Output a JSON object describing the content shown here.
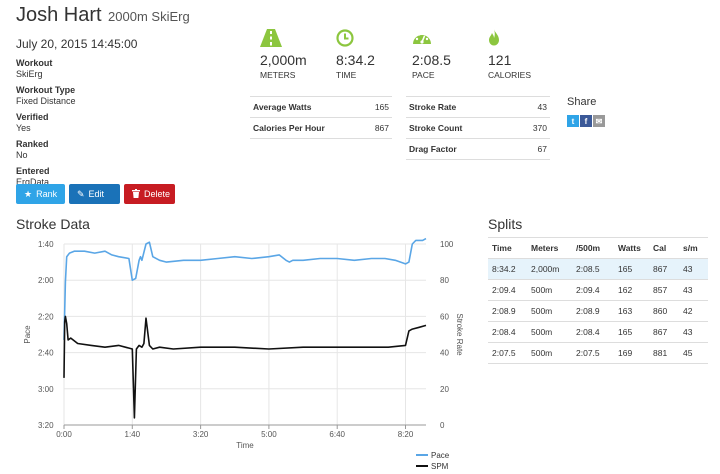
{
  "header": {
    "name": "Josh Hart",
    "subtitle": "2000m SkiErg"
  },
  "date": "July 20, 2015 14:45:00",
  "details": [
    {
      "label": "Workout",
      "value": "SkiErg"
    },
    {
      "label": "Workout Type",
      "value": "Fixed Distance"
    },
    {
      "label": "Verified",
      "value": "Yes"
    },
    {
      "label": "Ranked",
      "value": "No"
    },
    {
      "label": "Entered",
      "value": "ErgData"
    }
  ],
  "buttons": {
    "rank": "Rank",
    "edit": "Edit",
    "delete": "Delete"
  },
  "stats": [
    {
      "icon": "road-icon",
      "value": "2,000m",
      "label": "METERS"
    },
    {
      "icon": "clock-icon",
      "value": "8:34.2",
      "label": "TIME"
    },
    {
      "icon": "dashboard-icon",
      "value": "2:08.5",
      "label": "PACE"
    },
    {
      "icon": "flame-icon",
      "value": "121",
      "label": "CALORIES"
    }
  ],
  "metrics_left": [
    {
      "label": "Average Watts",
      "value": "165"
    },
    {
      "label": "Calories Per Hour",
      "value": "867"
    }
  ],
  "metrics_right": [
    {
      "label": "Stroke Rate",
      "value": "43"
    },
    {
      "label": "Stroke Count",
      "value": "370"
    },
    {
      "label": "Drag Factor",
      "value": "67"
    }
  ],
  "share": {
    "title": "Share",
    "twitter": "t",
    "facebook": "f",
    "email": "✉"
  },
  "stroke_data_title": "Stroke Data",
  "splits_title": "Splits",
  "splits": {
    "headers": [
      "Time",
      "Meters",
      "/500m",
      "Watts",
      "Cal",
      "s/m"
    ],
    "rows": [
      [
        "8:34.2",
        "2,000m",
        "2:08.5",
        "165",
        "867",
        "43"
      ],
      [
        "2:09.4",
        "500m",
        "2:09.4",
        "162",
        "857",
        "43"
      ],
      [
        "2:08.9",
        "500m",
        "2:08.9",
        "163",
        "860",
        "42"
      ],
      [
        "2:08.4",
        "500m",
        "2:08.4",
        "165",
        "867",
        "43"
      ],
      [
        "2:07.5",
        "500m",
        "2:07.5",
        "169",
        "881",
        "45"
      ]
    ]
  },
  "colors": {
    "pace": "#5aa6e6",
    "spm": "#111111",
    "rank": "#2fa4e7",
    "edit": "#1a72b8",
    "delete": "#c71c22",
    "icons": "#8cc63f"
  },
  "chart_data": {
    "type": "line",
    "xlabel": "Time",
    "ylabel_left": "Pace",
    "ylabel_right": "Stroke Rate",
    "x_ticks": [
      "0:00",
      "1:40",
      "3:20",
      "5:00",
      "6:40",
      "8:20"
    ],
    "y_left_ticks": [
      "1:40",
      "2:00",
      "2:20",
      "2:40",
      "3:00",
      "3:20"
    ],
    "y_right_ticks": [
      "100",
      "80",
      "60",
      "40",
      "20",
      "0"
    ],
    "y_left_range_sec": [
      100,
      200
    ],
    "y_right_range": [
      0,
      100
    ],
    "x_range_sec": [
      0,
      530
    ],
    "legend_position": "bottom-right",
    "grid": true,
    "series": [
      {
        "name": "Pace",
        "axis": "left",
        "x": [
          0,
          2,
          4,
          8,
          15,
          30,
          45,
          60,
          70,
          80,
          95,
          100,
          105,
          110,
          112,
          114,
          120,
          125,
          130,
          140,
          150,
          175,
          200,
          225,
          250,
          275,
          300,
          315,
          325,
          330,
          335,
          350,
          375,
          400,
          425,
          450,
          470,
          485,
          500,
          505,
          510,
          515,
          520,
          525,
          530
        ],
        "y": [
          153,
          121,
          107,
          105,
          104,
          104,
          105,
          104,
          106,
          107,
          108,
          120,
          119,
          109,
          107,
          109,
          100,
          99,
          107,
          109,
          110,
          109,
          109,
          108,
          107,
          108,
          107,
          106,
          109,
          110,
          109,
          109,
          108,
          108,
          109,
          108,
          108,
          109,
          111,
          110,
          100,
          98,
          98,
          98,
          97
        ]
      },
      {
        "name": "SPM",
        "axis": "right",
        "x": [
          0,
          1,
          2,
          4,
          6,
          10,
          20,
          40,
          60,
          80,
          100,
          103,
          106,
          110,
          114,
          117,
          120,
          125,
          130,
          140,
          160,
          200,
          250,
          300,
          350,
          400,
          450,
          475,
          500,
          505,
          510,
          520,
          530
        ],
        "y": [
          26,
          57,
          60,
          56,
          47,
          48,
          45,
          44,
          43,
          44,
          42,
          4,
          42,
          44,
          43,
          45,
          59,
          44,
          42,
          43,
          42,
          43,
          43,
          42,
          43,
          43,
          43,
          43,
          44,
          52,
          53,
          54,
          55
        ]
      }
    ]
  }
}
